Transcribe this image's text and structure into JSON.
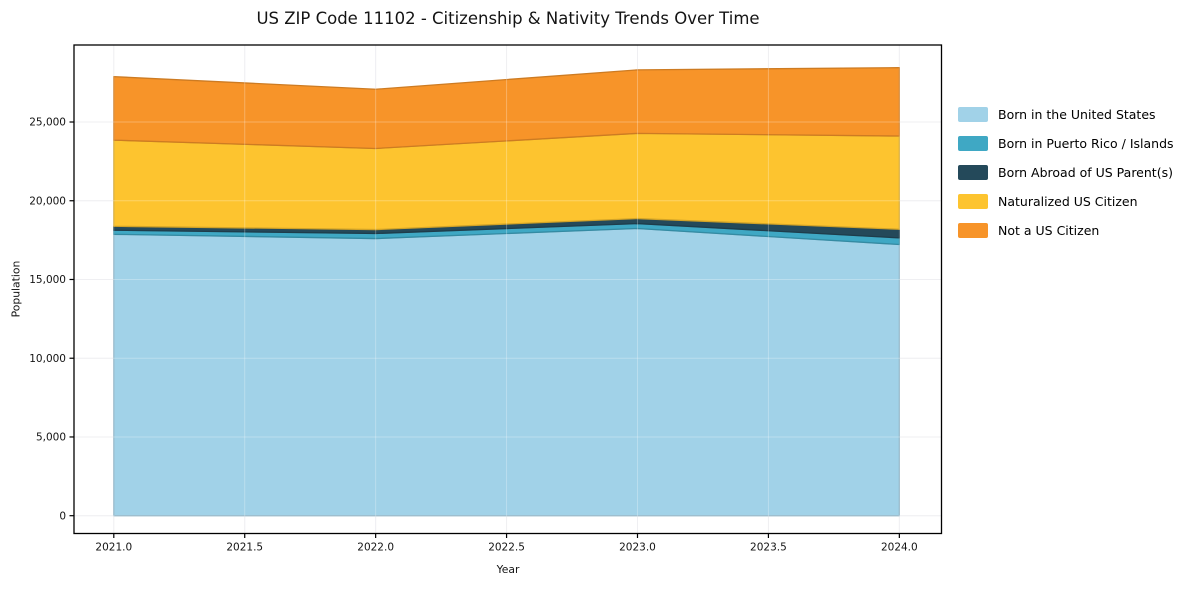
{
  "chart_data": {
    "type": "area",
    "stacked": true,
    "title": "US ZIP Code 11102 - Citizenship & Nativity Trends Over Time",
    "xlabel": "Year",
    "ylabel": "Population",
    "x": [
      2021,
      2022,
      2023,
      2024
    ],
    "series": [
      {
        "name": "Born in the United States",
        "color": "#a1d2e8",
        "values": [
          17870,
          17600,
          18240,
          17220
        ]
      },
      {
        "name": "Born in Puerto Rico / Islands",
        "color": "#3fa8c4",
        "values": [
          260,
          320,
          310,
          420
        ]
      },
      {
        "name": "Born Abroad of US Parent(s)",
        "color": "#24495a",
        "values": [
          250,
          250,
          320,
          550
        ]
      },
      {
        "name": "Naturalized US Citizen",
        "color": "#fdc42f",
        "values": [
          5470,
          5150,
          5410,
          5920
        ]
      },
      {
        "name": "Not a US Citizen",
        "color": "#f79429",
        "values": [
          4030,
          3760,
          4030,
          4340
        ]
      }
    ],
    "totals": [
      27880,
      27080,
      28310,
      28450
    ],
    "xtick_values": [
      2021.0,
      2021.5,
      2022.0,
      2022.5,
      2023.0,
      2023.5,
      2024.0
    ],
    "xtick_labels": [
      "2021.0",
      "2021.5",
      "2022.0",
      "2022.5",
      "2023.0",
      "2023.5",
      "2024.0"
    ],
    "ytick_values": [
      0,
      5000,
      10000,
      15000,
      20000,
      25000
    ],
    "ytick_labels": [
      "0",
      "5,000",
      "10,000",
      "15,000",
      "20,000",
      "25,000"
    ],
    "xlim": [
      2020.848,
      2024.161
    ],
    "ylim": [
      -1130,
      29890
    ],
    "grid": true,
    "legend_position": "right",
    "colors": {
      "frame": "#000000",
      "grid": "#e9e9ee",
      "background": "#ffffff",
      "text": "#141414"
    }
  }
}
